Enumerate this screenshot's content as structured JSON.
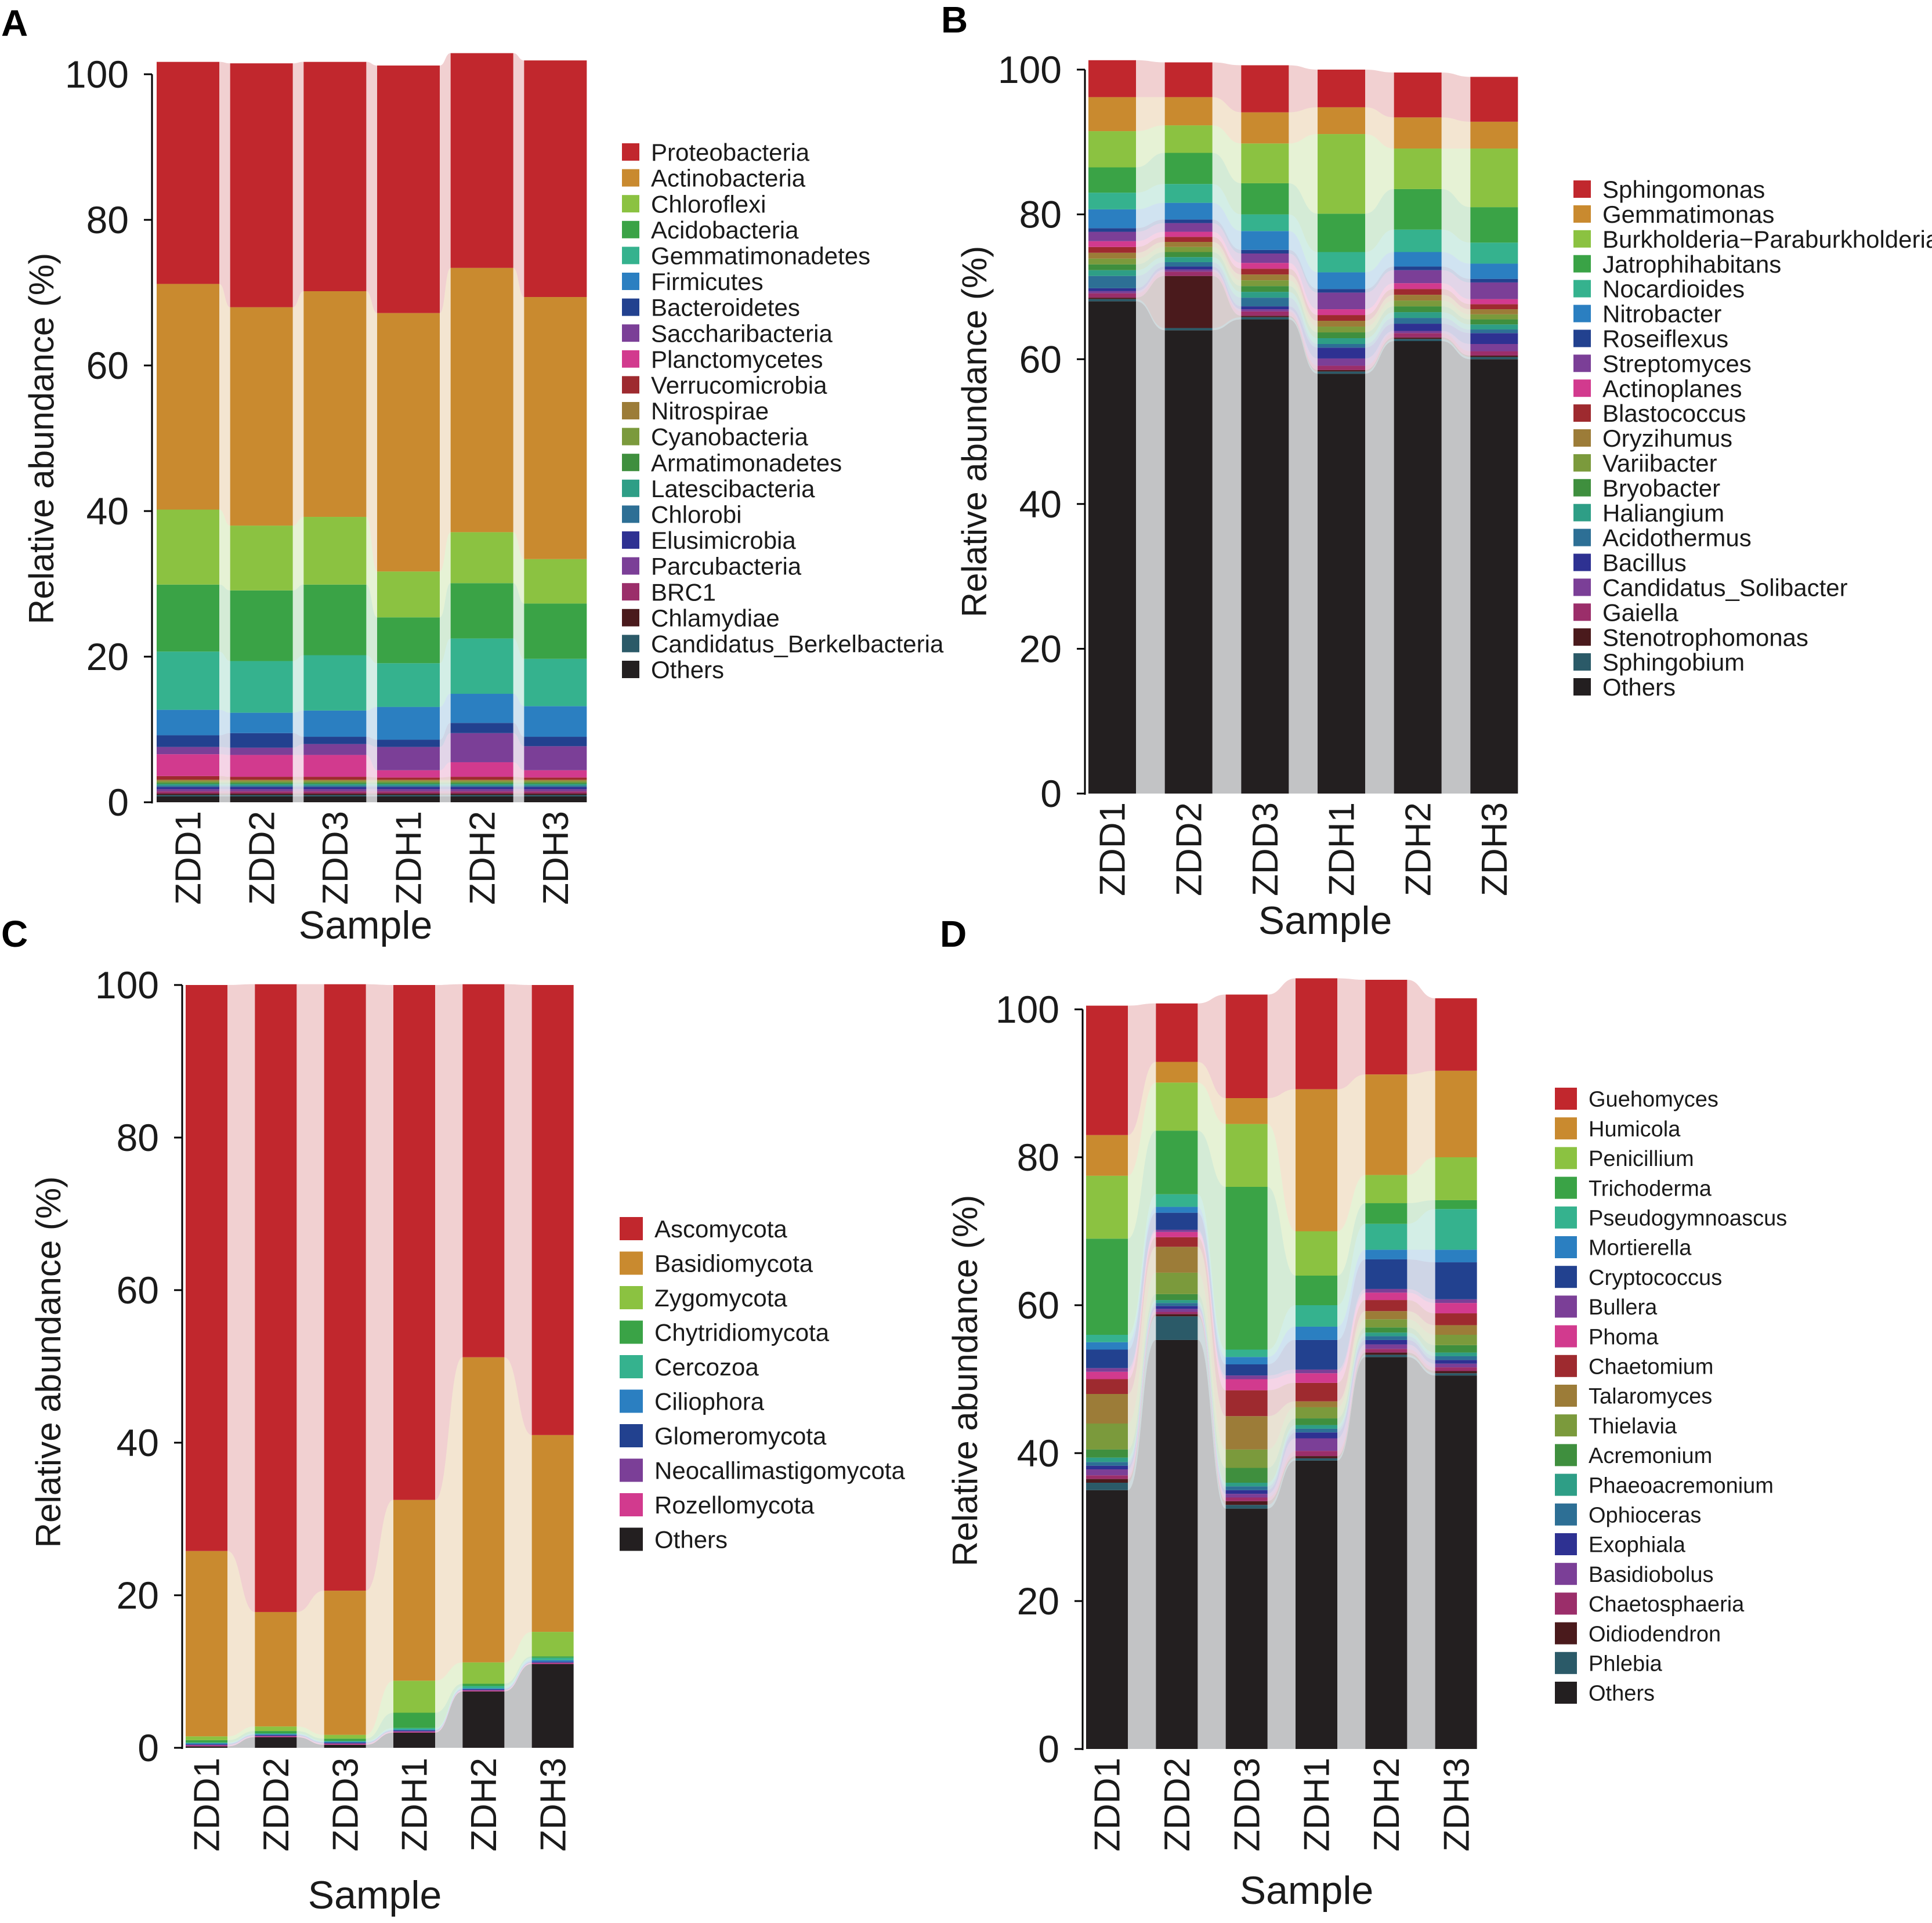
{
  "figure": {
    "panels": [
      "A",
      "B",
      "C",
      "D"
    ]
  },
  "chart_data": [
    {
      "panel_label": "A",
      "type": "bar",
      "stacked": true,
      "title": "",
      "xlabel": "Sample",
      "ylabel": "Relative abundance (%)",
      "ylim": [
        0,
        100
      ],
      "yticks": [
        "0",
        "20",
        "40",
        "60",
        "80",
        "100"
      ],
      "categories": [
        "ZDD1",
        "ZDD2",
        "ZDD3",
        "ZDH1",
        "ZDH2",
        "ZDH3"
      ],
      "series": [
        {
          "name": "Others",
          "color": "#231f20",
          "values": [
            0.8,
            0.8,
            0.8,
            0.8,
            0.8,
            0.8
          ]
        },
        {
          "name": "Candidatus_Berkelbacteria",
          "color": "#2b5a68",
          "values": [
            0.2,
            0.2,
            0.2,
            0.2,
            0.2,
            0.2
          ]
        },
        {
          "name": "Chlamydiae",
          "color": "#4a1a1c",
          "values": [
            0.2,
            0.2,
            0.2,
            0.2,
            0.2,
            0.2
          ]
        },
        {
          "name": "BRC1",
          "color": "#9b2e6a",
          "values": [
            0.3,
            0.3,
            0.3,
            0.3,
            0.3,
            0.3
          ]
        },
        {
          "name": "Parcubacteria",
          "color": "#7b3f97",
          "values": [
            0.3,
            0.3,
            0.3,
            0.3,
            0.3,
            0.3
          ]
        },
        {
          "name": "Elusimicrobia",
          "color": "#2e3192",
          "values": [
            0.3,
            0.3,
            0.3,
            0.3,
            0.3,
            0.3
          ]
        },
        {
          "name": "Chlorobi",
          "color": "#2d6f95",
          "values": [
            0.2,
            0.2,
            0.2,
            0.2,
            0.2,
            0.2
          ]
        },
        {
          "name": "Latescibacteria",
          "color": "#2e9e86",
          "values": [
            0.2,
            0.2,
            0.2,
            0.2,
            0.2,
            0.2
          ]
        },
        {
          "name": "Armatimonadetes",
          "color": "#3f8f3e",
          "values": [
            0.2,
            0.2,
            0.2,
            0.2,
            0.2,
            0.2
          ]
        },
        {
          "name": "Cyanobacteria",
          "color": "#7b9a3c",
          "values": [
            0.2,
            0.2,
            0.2,
            0.2,
            0.2,
            0.2
          ]
        },
        {
          "name": "Nitrospirae",
          "color": "#9c7c38",
          "values": [
            0.2,
            0.2,
            0.2,
            0.2,
            0.2,
            0.2
          ]
        },
        {
          "name": "Verrucomicrobia",
          "color": "#9e2a2f",
          "values": [
            0.5,
            0.4,
            0.4,
            0.3,
            0.4,
            0.3
          ]
        },
        {
          "name": "Planctomycetes",
          "color": "#d23a8e",
          "values": [
            3.0,
            3.0,
            3.0,
            1.0,
            2.0,
            1.0
          ]
        },
        {
          "name": "Saccharibacteria",
          "color": "#7b3f97",
          "values": [
            1.0,
            1.0,
            1.5,
            3.2,
            4.0,
            3.3
          ]
        },
        {
          "name": "Bacteroidetes",
          "color": "#22418f",
          "values": [
            1.6,
            2.0,
            1.0,
            1.0,
            1.4,
            1.3
          ]
        },
        {
          "name": "Firmicutes",
          "color": "#2b7fc1",
          "values": [
            3.5,
            2.8,
            3.6,
            4.5,
            4.0,
            4.2
          ]
        },
        {
          "name": "Gemmatimonadetes",
          "color": "#35b28e",
          "values": [
            8.0,
            7.1,
            7.6,
            6.0,
            7.6,
            6.5
          ]
        },
        {
          "name": "Acidobacteria",
          "color": "#3aa346",
          "values": [
            9.2,
            9.7,
            9.7,
            6.3,
            7.6,
            7.6
          ]
        },
        {
          "name": "Chloroflexi",
          "color": "#8bc241",
          "values": [
            10.3,
            8.9,
            9.3,
            6.3,
            7.0,
            6.1
          ]
        },
        {
          "name": "Actinobacteria",
          "color": "#c98a2f",
          "values": [
            31.0,
            30.0,
            31.0,
            35.5,
            36.3,
            36.0
          ]
        },
        {
          "name": "Proteobacteria",
          "color": "#c1272d",
          "values": [
            30.5,
            33.5,
            31.5,
            34.0,
            29.5,
            32.5
          ]
        }
      ]
    },
    {
      "panel_label": "B",
      "type": "bar",
      "stacked": true,
      "title": "",
      "xlabel": "Sample",
      "ylabel": "Relative abundance (%)",
      "ylim": [
        0,
        100
      ],
      "yticks": [
        "0",
        "20",
        "40",
        "60",
        "80",
        "100"
      ],
      "categories": [
        "ZDD1",
        "ZDD2",
        "ZDD3",
        "ZDH1",
        "ZDH2",
        "ZDH3"
      ],
      "series": [
        {
          "name": "Others",
          "color": "#231f20",
          "values": [
            68.0,
            64.0,
            65.5,
            58.0,
            62.5,
            60.0
          ]
        },
        {
          "name": "Sphingobium",
          "color": "#2b5a68",
          "values": [
            0.3,
            0.3,
            0.3,
            0.3,
            0.3,
            0.3
          ]
        },
        {
          "name": "Stenotrophomonas",
          "color": "#4a1a1c",
          "values": [
            0.2,
            7.2,
            0.2,
            0.2,
            0.2,
            0.2
          ]
        },
        {
          "name": "Gaiella",
          "color": "#9b2e6a",
          "values": [
            0.6,
            0.6,
            0.6,
            0.6,
            0.6,
            0.6
          ]
        },
        {
          "name": "Candidatus_Solibacter",
          "color": "#7b3f97",
          "values": [
            0.3,
            0.3,
            0.3,
            1.0,
            0.3,
            1.0
          ]
        },
        {
          "name": "Bacillus",
          "color": "#2e3192",
          "values": [
            0.4,
            0.4,
            0.4,
            1.5,
            1.0,
            1.5
          ]
        },
        {
          "name": "Acidothermus",
          "color": "#2d6f95",
          "values": [
            1.7,
            0.6,
            1.2,
            0.5,
            0.8,
            0.5
          ]
        },
        {
          "name": "Haliangium",
          "color": "#2e9e86",
          "values": [
            0.8,
            0.7,
            0.8,
            0.8,
            0.8,
            0.7
          ]
        },
        {
          "name": "Bryobacter",
          "color": "#3f8f3e",
          "values": [
            0.8,
            0.7,
            0.8,
            0.8,
            0.8,
            0.7
          ]
        },
        {
          "name": "Variibacter",
          "color": "#7b9a3c",
          "values": [
            0.8,
            0.7,
            0.8,
            0.8,
            0.8,
            0.7
          ]
        },
        {
          "name": "Oryzihumus",
          "color": "#9c7c38",
          "values": [
            0.8,
            0.7,
            0.8,
            0.8,
            0.8,
            0.7
          ]
        },
        {
          "name": "Blastococcus",
          "color": "#9e2a2f",
          "values": [
            0.8,
            0.7,
            0.8,
            0.8,
            0.8,
            0.7
          ]
        },
        {
          "name": "Actinoplanes",
          "color": "#d23a8e",
          "values": [
            0.8,
            0.7,
            0.8,
            0.8,
            0.8,
            0.7
          ]
        },
        {
          "name": "Streptomyces",
          "color": "#7b3f97",
          "values": [
            1.3,
            1.2,
            1.3,
            2.3,
            1.8,
            2.3
          ]
        },
        {
          "name": "Roseiflexus",
          "color": "#22418f",
          "values": [
            0.5,
            0.5,
            0.5,
            0.5,
            0.5,
            0.5
          ]
        },
        {
          "name": "Nitrobacter",
          "color": "#2b7fc1",
          "values": [
            2.6,
            2.3,
            2.6,
            2.3,
            2.0,
            2.1
          ]
        },
        {
          "name": "Nocardioides",
          "color": "#35b28e",
          "values": [
            2.3,
            2.6,
            2.3,
            2.8,
            3.1,
            2.9
          ]
        },
        {
          "name": "Jatrophihabitans",
          "color": "#3aa346",
          "values": [
            3.5,
            4.3,
            4.3,
            5.3,
            5.6,
            4.9
          ]
        },
        {
          "name": "Burkholderia−Paraburkholderia",
          "color": "#8bc241",
          "values": [
            5.0,
            3.8,
            5.5,
            11.0,
            5.6,
            8.1
          ]
        },
        {
          "name": "Gemmatimonas",
          "color": "#c98a2f",
          "values": [
            4.7,
            3.9,
            4.3,
            3.7,
            4.3,
            3.7
          ]
        },
        {
          "name": "Sphingomonas",
          "color": "#c1272d",
          "values": [
            5.1,
            4.8,
            6.5,
            5.2,
            6.2,
            6.2
          ]
        }
      ]
    },
    {
      "panel_label": "C",
      "type": "bar",
      "stacked": true,
      "title": "",
      "xlabel": "Sample",
      "ylabel": "Relative abundance (%)",
      "ylim": [
        0,
        100
      ],
      "yticks": [
        "0",
        "20",
        "40",
        "60",
        "80",
        "100"
      ],
      "categories": [
        "ZDD1",
        "ZDD2",
        "ZDD3",
        "ZDH1",
        "ZDH2",
        "ZDH3"
      ],
      "series": [
        {
          "name": "Others",
          "color": "#231f20",
          "values": [
            0.2,
            1.4,
            0.4,
            2.0,
            7.4,
            11.0
          ]
        },
        {
          "name": "Rozellomycota",
          "color": "#d23a8e",
          "values": [
            0.1,
            0.1,
            0.1,
            0.1,
            0.1,
            0.1
          ]
        },
        {
          "name": "Neocallimastigomycota",
          "color": "#7b3f97",
          "values": [
            0.1,
            0.1,
            0.1,
            0.1,
            0.1,
            0.1
          ]
        },
        {
          "name": "Glomeromycota",
          "color": "#22418f",
          "values": [
            0.1,
            0.1,
            0.1,
            0.1,
            0.1,
            0.1
          ]
        },
        {
          "name": "Ciliophora",
          "color": "#2b7fc1",
          "values": [
            0.1,
            0.1,
            0.1,
            0.1,
            0.1,
            0.2
          ]
        },
        {
          "name": "Cercozoa",
          "color": "#35b28e",
          "values": [
            0.1,
            0.1,
            0.1,
            0.2,
            0.3,
            0.3
          ]
        },
        {
          "name": "Chytridiomycota",
          "color": "#3aa346",
          "values": [
            0.3,
            0.3,
            0.3,
            2.0,
            0.3,
            0.2
          ]
        },
        {
          "name": "Zygomycota",
          "color": "#8bc241",
          "values": [
            0.5,
            0.6,
            0.5,
            4.2,
            2.8,
            3.2
          ]
        },
        {
          "name": "Basidiomycota",
          "color": "#c98a2f",
          "values": [
            24.3,
            15.0,
            18.9,
            23.7,
            40.0,
            25.8
          ]
        },
        {
          "name": "Ascomycota",
          "color": "#c1272d",
          "values": [
            74.2,
            82.3,
            79.5,
            67.5,
            48.9,
            59.0
          ]
        }
      ]
    },
    {
      "panel_label": "D",
      "type": "bar",
      "stacked": true,
      "title": "",
      "xlabel": "Sample",
      "ylabel": "Relative abundance (%)",
      "ylim": [
        0,
        100
      ],
      "yticks": [
        "0",
        "20",
        "40",
        "60",
        "80",
        "100"
      ],
      "categories": [
        "ZDD1",
        "ZDD2",
        "ZDD3",
        "ZDH1",
        "ZDH2",
        "ZDH3"
      ],
      "series": [
        {
          "name": "Others",
          "color": "#231f20",
          "values": [
            35.0,
            55.3,
            32.5,
            39.0,
            53.0,
            50.5
          ]
        },
        {
          "name": "Phlebia",
          "color": "#2b5a68",
          "values": [
            1.0,
            3.2,
            0.5,
            0.3,
            0.3,
            0.3
          ]
        },
        {
          "name": "Oidiodendron",
          "color": "#4a1a1c",
          "values": [
            0.5,
            0.3,
            0.5,
            0.3,
            0.3,
            0.3
          ]
        },
        {
          "name": "Chaetosphaeria",
          "color": "#9b2e6a",
          "values": [
            0.5,
            0.3,
            0.5,
            0.7,
            0.5,
            0.5
          ]
        },
        {
          "name": "Basidiobolus",
          "color": "#7b3f97",
          "values": [
            0.8,
            0.4,
            0.5,
            1.7,
            0.6,
            0.5
          ]
        },
        {
          "name": "Exophiala",
          "color": "#2e3192",
          "values": [
            0.5,
            0.4,
            0.5,
            0.8,
            0.6,
            0.5
          ]
        },
        {
          "name": "Ophioceras",
          "color": "#2d6f95",
          "values": [
            0.5,
            0.4,
            0.5,
            0.5,
            0.5,
            0.5
          ]
        },
        {
          "name": "Phaeoacremonium",
          "color": "#2e9e86",
          "values": [
            0.6,
            0.4,
            0.5,
            0.5,
            0.5,
            0.5
          ]
        },
        {
          "name": "Acremonium",
          "color": "#3f8f3e",
          "values": [
            1.1,
            0.8,
            2.0,
            0.9,
            0.7,
            1.0
          ]
        },
        {
          "name": "Thielavia",
          "color": "#7b9a3c",
          "values": [
            3.5,
            2.9,
            2.5,
            1.5,
            1.1,
            1.4
          ]
        },
        {
          "name": "Talaromyces",
          "color": "#9c7c38",
          "values": [
            4.0,
            3.5,
            4.5,
            0.8,
            1.1,
            1.3
          ]
        },
        {
          "name": "Chaetomium",
          "color": "#9e2a2f",
          "values": [
            2.0,
            1.3,
            3.5,
            2.5,
            1.5,
            1.6
          ]
        },
        {
          "name": "Phoma",
          "color": "#d23a8e",
          "values": [
            1.0,
            0.7,
            1.5,
            1.3,
            1.0,
            1.4
          ]
        },
        {
          "name": "Bullera",
          "color": "#7b3f97",
          "values": [
            0.5,
            0.3,
            0.5,
            0.5,
            0.5,
            0.5
          ]
        },
        {
          "name": "Cryptococcus",
          "color": "#22418f",
          "values": [
            2.5,
            2.3,
            1.5,
            4.0,
            4.0,
            5.0
          ]
        },
        {
          "name": "Mortierella",
          "color": "#2b7fc1",
          "values": [
            1.0,
            0.8,
            1.0,
            1.8,
            1.3,
            1.7
          ]
        },
        {
          "name": "Pseudogymnoascus",
          "color": "#35b28e",
          "values": [
            1.0,
            1.7,
            1.0,
            2.9,
            3.5,
            5.5
          ]
        },
        {
          "name": "Trichoderma",
          "color": "#3aa346",
          "values": [
            13.0,
            8.6,
            22.0,
            4.0,
            2.8,
            1.2
          ]
        },
        {
          "name": "Penicillium",
          "color": "#8bc241",
          "values": [
            8.5,
            6.5,
            8.5,
            6.0,
            3.8,
            5.8
          ]
        },
        {
          "name": "Humicola",
          "color": "#c98a2f",
          "values": [
            5.5,
            2.8,
            3.5,
            19.2,
            13.6,
            11.7
          ]
        },
        {
          "name": "Guehomyces",
          "color": "#c1272d",
          "values": [
            17.5,
            7.9,
            14.0,
            15.0,
            12.8,
            9.8
          ]
        }
      ]
    }
  ]
}
